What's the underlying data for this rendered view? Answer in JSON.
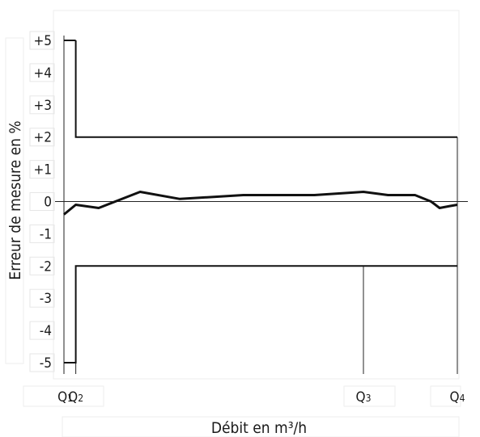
{
  "chart_data": {
    "type": "line",
    "xlabel": "Débit en m³/h",
    "ylabel": "Erreur de mesure en %",
    "ylim": [
      -5,
      5
    ],
    "yticks": [
      "+5",
      "+4",
      "+3",
      "+2",
      "+1",
      "0",
      "-1",
      "-2",
      "-3",
      "-4",
      "-5"
    ],
    "x_markers": [
      {
        "base": "Q",
        "sub": "1",
        "x": 1.5
      },
      {
        "base": "Q",
        "sub": "2",
        "x": 14
      },
      {
        "base": "Q",
        "sub": "3",
        "x": 354
      },
      {
        "base": "Q",
        "sub": "4",
        "x": 465
      }
    ],
    "xlim": [
      0,
      465
    ],
    "limits": {
      "upper": [
        [
          14,
          5
        ],
        [
          14,
          2
        ],
        [
          465,
          2
        ]
      ],
      "upper_top": [
        [
          0,
          5
        ],
        [
          14,
          5
        ]
      ],
      "lower": [
        [
          0,
          -5
        ],
        [
          14,
          -5
        ],
        [
          14,
          -2
        ],
        [
          465,
          -2
        ]
      ]
    },
    "series": [
      {
        "x": [
          0,
          14,
          41,
          90,
          137,
          212,
          296,
          354,
          383,
          415,
          434,
          444,
          456,
          465
        ],
        "values": [
          -0.4,
          -0.1,
          -0.2,
          0.3,
          0.08,
          0.2,
          0.2,
          0.3,
          0.2,
          0.2,
          0.0,
          -0.2,
          -0.14,
          -0.1
        ]
      }
    ]
  }
}
